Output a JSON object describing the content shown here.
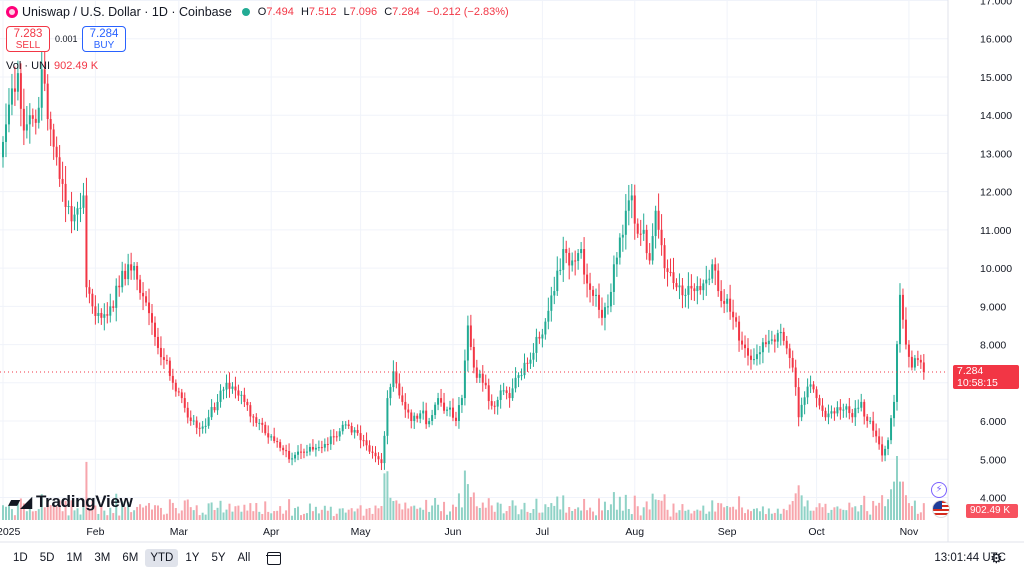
{
  "header": {
    "symbol_title": "Uniswap / U.S. Dollar · 1D · Coinbase",
    "ohlc": [
      {
        "k": "O",
        "v": "7.494"
      },
      {
        "k": "H",
        "v": "7.512"
      },
      {
        "k": "L",
        "v": "7.096"
      },
      {
        "k": "C",
        "v": "7.284"
      },
      {
        "k": "",
        "v": "−0.212 (−2.83%)"
      }
    ]
  },
  "trade": {
    "sell_price": "7.283",
    "sell_label": "SELL",
    "spread": "0.001",
    "buy_price": "7.284",
    "buy_label": "BUY"
  },
  "volume_legend": {
    "label": "Vol · UNI",
    "value": "902.49 K"
  },
  "price_tag": {
    "price": "7.284",
    "countdown": "10:58:15"
  },
  "volume_tag": "902.49 K",
  "brand": "TradingView",
  "bottom_bar": {
    "ranges": [
      "1D",
      "5D",
      "1M",
      "3M",
      "6M",
      "YTD",
      "1Y",
      "5Y",
      "All"
    ],
    "active_range": "YTD",
    "time": "13:01:44 UTC"
  },
  "colors": {
    "up": "#22ab94",
    "down": "#f23645",
    "up_vol": "#8fd2c6",
    "down_vol": "#f7a5ac"
  },
  "icons": [
    "logo-icon",
    "flash-icon",
    "flag-icon",
    "calendar-icon",
    "gear-icon"
  ],
  "chart_data": {
    "type": "candlestick",
    "title": "Uniswap / U.S. Dollar · 1D · Coinbase",
    "ylim": [
      4.0,
      17.0
    ],
    "y_ticks": [
      "17.000",
      "16.000",
      "15.000",
      "14.000",
      "13.000",
      "12.000",
      "11.000",
      "10.000",
      "9.000",
      "8.000",
      "7.000",
      "6.000",
      "5.000",
      "4.000"
    ],
    "x_ticks": [
      {
        "label": "2025",
        "day": 0
      },
      {
        "label": "Feb",
        "day": 31
      },
      {
        "label": "Mar",
        "day": 59
      },
      {
        "label": "Apr",
        "day": 90
      },
      {
        "label": "May",
        "day": 120
      },
      {
        "label": "Jun",
        "day": 151
      },
      {
        "label": "Jul",
        "day": 181
      },
      {
        "label": "Aug",
        "day": 212
      },
      {
        "label": "Sep",
        "day": 243
      },
      {
        "label": "Oct",
        "day": 273
      },
      {
        "label": "Nov",
        "day": 304
      }
    ],
    "close_anchors": [
      [
        0,
        13.3
      ],
      [
        3,
        14.7
      ],
      [
        5,
        15.1
      ],
      [
        7,
        13.6
      ],
      [
        9,
        14.0
      ],
      [
        11,
        13.8
      ],
      [
        13,
        15.2
      ],
      [
        15,
        13.9
      ],
      [
        18,
        12.9
      ],
      [
        21,
        11.6
      ],
      [
        24,
        11.4
      ],
      [
        27,
        11.9
      ],
      [
        28,
        9.5
      ],
      [
        30,
        9.0
      ],
      [
        33,
        8.7
      ],
      [
        36,
        9.0
      ],
      [
        39,
        9.5
      ],
      [
        42,
        10.1
      ],
      [
        45,
        9.7
      ],
      [
        48,
        9.1
      ],
      [
        51,
        8.2
      ],
      [
        54,
        7.6
      ],
      [
        57,
        7.0
      ],
      [
        60,
        6.6
      ],
      [
        63,
        6.0
      ],
      [
        66,
        5.8
      ],
      [
        69,
        6.1
      ],
      [
        72,
        6.5
      ],
      [
        75,
        7.0
      ],
      [
        78,
        6.8
      ],
      [
        81,
        6.5
      ],
      [
        84,
        6.1
      ],
      [
        87,
        5.9
      ],
      [
        90,
        5.6
      ],
      [
        93,
        5.3
      ],
      [
        96,
        5.0
      ],
      [
        99,
        5.2
      ],
      [
        102,
        5.2
      ],
      [
        105,
        5.3
      ],
      [
        108,
        5.4
      ],
      [
        111,
        5.6
      ],
      [
        114,
        5.9
      ],
      [
        117,
        5.7
      ],
      [
        120,
        5.5
      ],
      [
        123,
        5.2
      ],
      [
        126,
        5.0
      ],
      [
        127,
        4.9
      ],
      [
        129,
        6.6
      ],
      [
        131,
        7.3
      ],
      [
        134,
        6.5
      ],
      [
        137,
        6.0
      ],
      [
        140,
        6.2
      ],
      [
        143,
        6.0
      ],
      [
        146,
        6.6
      ],
      [
        149,
        6.3
      ],
      [
        152,
        6.0
      ],
      [
        154,
        6.6
      ],
      [
        156,
        8.5
      ],
      [
        158,
        7.4
      ],
      [
        161,
        7.0
      ],
      [
        164,
        6.4
      ],
      [
        167,
        6.8
      ],
      [
        170,
        6.6
      ],
      [
        173,
        7.2
      ],
      [
        176,
        7.5
      ],
      [
        179,
        8.2
      ],
      [
        182,
        8.6
      ],
      [
        185,
        9.4
      ],
      [
        188,
        10.5
      ],
      [
        191,
        10.2
      ],
      [
        194,
        10.5
      ],
      [
        196,
        9.6
      ],
      [
        199,
        9.3
      ],
      [
        201,
        8.7
      ],
      [
        203,
        9.0
      ],
      [
        205,
        10.1
      ],
      [
        207,
        10.8
      ],
      [
        209,
        11.5
      ],
      [
        211,
        11.9
      ],
      [
        213,
        10.9
      ],
      [
        215,
        11.0
      ],
      [
        217,
        10.2
      ],
      [
        219,
        11.5
      ],
      [
        221,
        10.6
      ],
      [
        223,
        9.9
      ],
      [
        226,
        9.5
      ],
      [
        229,
        9.3
      ],
      [
        232,
        9.4
      ],
      [
        235,
        9.6
      ],
      [
        238,
        10.1
      ],
      [
        240,
        9.4
      ],
      [
        243,
        9.2
      ],
      [
        246,
        8.6
      ],
      [
        248,
        8.0
      ],
      [
        251,
        7.6
      ],
      [
        254,
        7.8
      ],
      [
        257,
        8.1
      ],
      [
        260,
        8.3
      ],
      [
        263,
        7.9
      ],
      [
        265,
        7.4
      ],
      [
        267,
        6.1
      ],
      [
        270,
        6.9
      ],
      [
        273,
        6.6
      ],
      [
        276,
        6.1
      ],
      [
        279,
        6.2
      ],
      [
        282,
        6.3
      ],
      [
        285,
        6.1
      ],
      [
        288,
        6.5
      ],
      [
        290,
        6.0
      ],
      [
        293,
        5.6
      ],
      [
        295,
        5.1
      ],
      [
        297,
        5.5
      ],
      [
        299,
        6.5
      ],
      [
        301,
        9.3
      ],
      [
        303,
        8.0
      ],
      [
        305,
        7.4
      ],
      [
        307,
        7.6
      ],
      [
        309,
        7.3
      ]
    ],
    "current_close": 7.284,
    "volume_max_label": "902.49 K"
  }
}
